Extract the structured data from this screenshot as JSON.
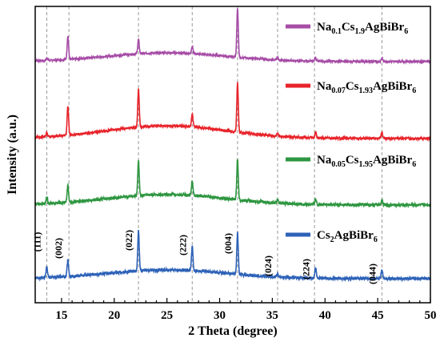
{
  "chart_data": {
    "type": "line",
    "xlabel": "2 Theta (degree)",
    "ylabel": "Intensity (a.u.)",
    "xlim": [
      12.5,
      50
    ],
    "xticks": [
      15,
      20,
      25,
      30,
      35,
      40,
      45,
      50
    ],
    "y_tick_labels": "none",
    "grid": false,
    "legend_position": "right, beside each trace",
    "reference_lines": [
      13.6,
      15.7,
      22.3,
      27.4,
      31.7,
      35.5,
      39.0,
      45.4
    ],
    "peaks_2theta": [
      13.6,
      15.6,
      22.3,
      27.4,
      31.7,
      35.5,
      39.1,
      45.4
    ],
    "peak_labels": [
      {
        "text": "(111)",
        "x": 13.6
      },
      {
        "text": "(002)",
        "x": 15.6
      },
      {
        "text": "(022)",
        "x": 22.3
      },
      {
        "text": "(222)",
        "x": 27.4
      },
      {
        "text": "(004)",
        "x": 31.7
      },
      {
        "text": "(024)",
        "x": 35.5
      },
      {
        "text": "(224)",
        "x": 39.1
      },
      {
        "text": "(044)",
        "x": 45.4
      }
    ],
    "series": [
      {
        "name": "Na0.1Cs1.9AgBiBr6",
        "legend_parts": [
          {
            "t": "Na",
            "sub": false
          },
          {
            "t": "0.1",
            "sub": true
          },
          {
            "t": "Cs",
            "sub": false
          },
          {
            "t": "1.9",
            "sub": true
          },
          {
            "t": "AgBiBr",
            "sub": false
          },
          {
            "t": "6",
            "sub": true
          }
        ],
        "color": "#a64ca6",
        "offset": 3,
        "hump": 0.15,
        "noise": 0.015,
        "intensities": [
          0.04,
          0.4,
          0.25,
          0.12,
          0.85,
          0.04,
          0.06,
          0.06
        ]
      },
      {
        "name": "Na0.07Cs1.93AgBiBr6",
        "legend_parts": [
          {
            "t": "Na",
            "sub": false
          },
          {
            "t": "0.07",
            "sub": true
          },
          {
            "t": "Cs",
            "sub": false
          },
          {
            "t": "1.93",
            "sub": true
          },
          {
            "t": "AgBiBr",
            "sub": false
          },
          {
            "t": "6",
            "sub": true
          }
        ],
        "color": "#e8232a",
        "offset": 2,
        "hump": 0.22,
        "noise": 0.02,
        "intensities": [
          0.07,
          0.5,
          0.65,
          0.22,
          0.85,
          0.05,
          0.1,
          0.1
        ]
      },
      {
        "name": "Na0.05Cs1.95AgBiBr6",
        "legend_parts": [
          {
            "t": "Na",
            "sub": false
          },
          {
            "t": "0.05",
            "sub": true
          },
          {
            "t": "Cs",
            "sub": false
          },
          {
            "t": "1.95",
            "sub": true
          },
          {
            "t": "AgBiBr",
            "sub": false
          },
          {
            "t": "6",
            "sub": true
          }
        ],
        "color": "#2e9640",
        "offset": 1,
        "hump": 0.18,
        "noise": 0.025,
        "intensities": [
          0.1,
          0.3,
          0.6,
          0.25,
          0.7,
          0.06,
          0.1,
          0.08
        ]
      },
      {
        "name": "Cs2AgBiBr6",
        "legend_parts": [
          {
            "t": "Cs",
            "sub": false
          },
          {
            "t": "2",
            "sub": true
          },
          {
            "t": "AgBiBr",
            "sub": false
          },
          {
            "t": "6",
            "sub": true
          }
        ],
        "color": "#2e62b8",
        "offset": 0,
        "hump": 0.15,
        "noise": 0.025,
        "intensities": [
          0.18,
          0.28,
          0.7,
          0.42,
          0.72,
          0.05,
          0.18,
          0.14
        ]
      }
    ]
  }
}
